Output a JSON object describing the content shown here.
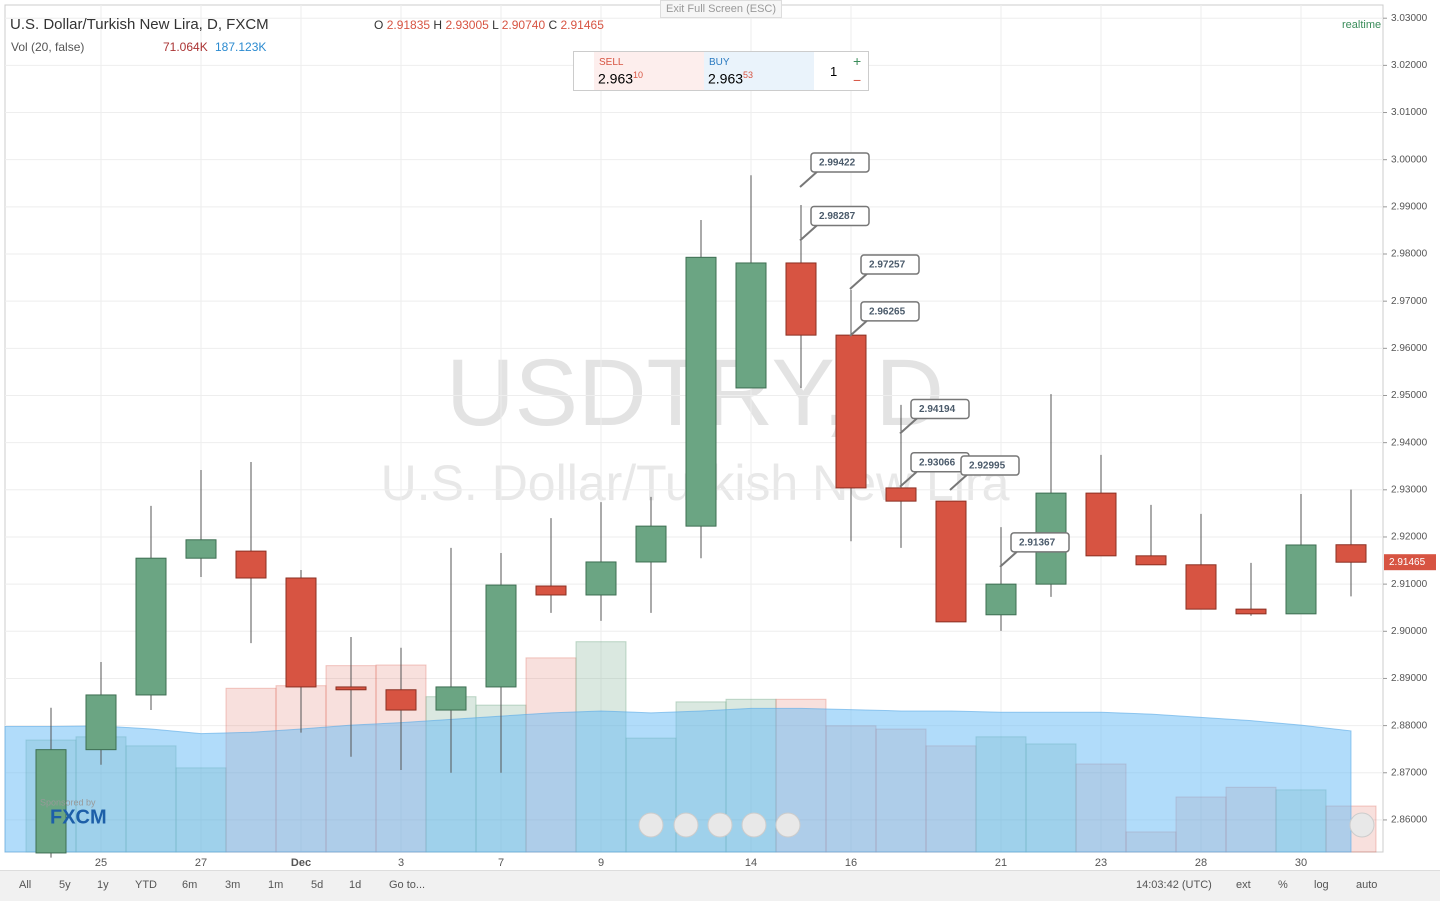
{
  "exit_fullscreen": "Exit Full Screen (ESC)",
  "header": {
    "title": "U.S. Dollar/Turkish New Lira, D, FXCM",
    "o_label": "O",
    "o": "2.91835",
    "h_label": "H",
    "h": "2.93005",
    "l_label": "L",
    "l": "2.90740",
    "c_label": "C",
    "c": "2.91465",
    "realtime": "realtime",
    "vol_title": "Vol (20, false)",
    "vol": "71.064K",
    "vol_ma": "187.123K"
  },
  "trade_panel": {
    "sell_label": "SELL",
    "sell_main": "2.963",
    "sell_sup": "10",
    "buy_label": "BUY",
    "buy_main": "2.963",
    "buy_sup": "53",
    "quantity": "1",
    "plus": "+",
    "minus": "−"
  },
  "watermark": {
    "symbol": "USDTRY, D",
    "name": "U.S. Dollar/Turkish New Lira"
  },
  "sponsor": {
    "by": "Sponsored by",
    "brand": "FXCM"
  },
  "toolbar": {
    "ranges": [
      "All",
      "5y",
      "1y",
      "YTD",
      "6m",
      "3m",
      "1m",
      "5d",
      "1d",
      "Go to..."
    ],
    "time": "14:03:42 (UTC)",
    "options": [
      "ext",
      "%",
      "log",
      "auto"
    ]
  },
  "chart_data": {
    "type": "candlestick",
    "categories": [
      null,
      "25",
      null,
      "27",
      null,
      "Dec",
      null,
      "3",
      null,
      "7",
      null,
      "9",
      null,
      null,
      "14",
      null,
      "16",
      null,
      null,
      "21",
      null,
      "23",
      null,
      "28",
      null,
      "30",
      null
    ],
    "open": [
      2.853,
      2.8749,
      2.8865,
      2.9155,
      2.917,
      2.9113,
      2.8882,
      2.8876,
      2.8833,
      2.8882,
      2.9096,
      2.9077,
      2.9147,
      2.9223,
      2.9516,
      2.9781,
      2.9628,
      2.9304,
      2.9276,
      2.9035,
      2.91,
      2.9293,
      2.916,
      2.9141,
      2.9047,
      2.9037,
      2.91835
    ],
    "high": [
      2.8838,
      2.8935,
      2.9266,
      2.9342,
      2.9359,
      2.913,
      2.8988,
      2.8965,
      2.9177,
      2.9166,
      2.924,
      2.9274,
      2.9285,
      2.9872,
      2.9967,
      2.9904,
      2.9724,
      2.948,
      2.9276,
      2.9221,
      2.9503,
      2.9374,
      2.9268,
      2.9249,
      2.9145,
      2.9291,
      2.93005
    ],
    "low": [
      2.852,
      2.8717,
      2.8833,
      2.9115,
      2.8975,
      2.8785,
      2.8734,
      2.8706,
      2.87,
      2.87,
      2.9039,
      2.9022,
      2.9039,
      2.9155,
      2.9516,
      2.9516,
      2.9191,
      2.9177,
      2.902,
      2.9001,
      2.9073,
      2.916,
      2.9141,
      2.9047,
      2.9033,
      2.9037,
      2.9074
    ],
    "close": [
      2.8749,
      2.8865,
      2.9155,
      2.9194,
      2.9113,
      2.8882,
      2.8876,
      2.8833,
      2.8882,
      2.9098,
      2.9077,
      2.9147,
      2.9223,
      2.9793,
      2.9781,
      2.9628,
      2.9304,
      2.9276,
      2.902,
      2.91,
      2.9293,
      2.916,
      2.9141,
      2.9047,
      2.9037,
      2.9183,
      2.91465
    ],
    "up_color": "#6ba583",
    "down_color": "#d75442",
    "volume": [
      173,
      178,
      164,
      130,
      253,
      257,
      288,
      289,
      240,
      227,
      300,
      325,
      176,
      232,
      236,
      236,
      195,
      190,
      164,
      178,
      167,
      136,
      31,
      85,
      100,
      96,
      71.064
    ],
    "volume_ma": [
      194,
      195,
      190,
      183,
      185,
      190,
      196,
      200,
      205,
      210,
      215,
      218,
      215,
      218,
      222,
      222,
      220,
      218,
      218,
      216,
      216,
      216,
      213,
      208,
      203,
      196,
      187.123
    ],
    "volume_lim": [
      0,
      1309
    ],
    "callouts": [
      [],
      [],
      [],
      [],
      [],
      [],
      [],
      [],
      [],
      [],
      [],
      [],
      [],
      [],
      [],
      [
        2.99422,
        2.98287
      ],
      [
        2.97257,
        2.96265
      ],
      [
        2.94194,
        2.93066
      ],
      [
        2.92995
      ],
      [
        2.91367
      ],
      [],
      [],
      [],
      [],
      [],
      [],
      []
    ],
    "ylim": [
      2.8532,
      3.0328
    ],
    "yticks": [
      {
        "value": 2.86,
        "label": "2.86000"
      },
      {
        "value": 2.87,
        "label": "2.87000"
      },
      {
        "value": 2.88,
        "label": "2.88000"
      },
      {
        "value": 2.89,
        "label": "2.89000"
      },
      {
        "value": 2.9,
        "label": "2.90000"
      },
      {
        "value": 2.91,
        "label": "2.91000"
      },
      {
        "value": 2.92,
        "label": "2.92000"
      },
      {
        "value": 2.93,
        "label": "2.93000"
      },
      {
        "value": 2.94,
        "label": "2.94000"
      },
      {
        "value": 2.95,
        "label": "2.95000"
      },
      {
        "value": 2.96,
        "label": "2.96000"
      },
      {
        "value": 2.97,
        "label": "2.97000"
      },
      {
        "value": 2.98,
        "label": "2.98000"
      },
      {
        "value": 2.99,
        "label": "2.99000"
      },
      {
        "value": 3.0,
        "label": "3.00000"
      },
      {
        "value": 3.01,
        "label": "3.01000"
      },
      {
        "value": 3.02,
        "label": "3.02000"
      },
      {
        "value": 3.03,
        "label": "3.03000"
      }
    ],
    "grid": true
  }
}
